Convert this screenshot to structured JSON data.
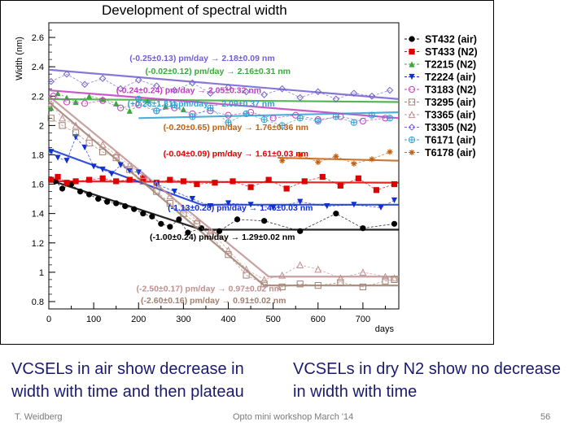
{
  "slide": {
    "caption_left": "VCSELs in air show decrease in width with time and then plateau",
    "caption_right": "VCSELs in dry N2 show no decrease in width with time",
    "footer_author": "T. Weidberg",
    "footer_title": "Opto mini workshop March '14",
    "page_number": "56"
  },
  "chart_data": {
    "type": "scatter",
    "title": "Development of spectral width",
    "xlabel": "days",
    "ylabel": "Width (nm)",
    "xlim": [
      0,
      780
    ],
    "ylim": [
      0.75,
      2.7
    ],
    "xticks": [
      0,
      100,
      200,
      300,
      400,
      500,
      600,
      700
    ],
    "yticks": [
      0.8,
      1.0,
      1.2,
      1.4,
      1.6,
      1.8,
      2.0,
      2.2,
      2.4,
      2.6
    ],
    "ytick_labels": [
      "0.8",
      "1",
      "1.2",
      "1.4",
      "1.6",
      "1.8",
      "2",
      "2.2",
      "2.4",
      "2.6"
    ],
    "legend_position": "right",
    "series": [
      {
        "name": "ST432 (air)",
        "color": "#000000",
        "marker": "circle-filled",
        "linestyle": "dashed",
        "x": [
          5,
          15,
          30,
          50,
          70,
          90,
          110,
          130,
          150,
          170,
          190,
          210,
          230,
          250,
          270,
          290,
          310,
          340,
          380,
          420,
          480,
          560,
          640,
          700,
          770
        ],
        "y": [
          1.63,
          1.62,
          1.57,
          1.6,
          1.55,
          1.53,
          1.5,
          1.48,
          1.47,
          1.45,
          1.43,
          1.4,
          1.38,
          1.33,
          1.31,
          1.36,
          1.27,
          1.3,
          1.28,
          1.36,
          1.35,
          1.28,
          1.4,
          1.3,
          1.33
        ]
      },
      {
        "name": "ST433 (N2)",
        "color": "#e00000",
        "marker": "square-filled",
        "linestyle": "dashed",
        "x": [
          5,
          20,
          40,
          60,
          90,
          120,
          150,
          180,
          210,
          240,
          270,
          300,
          330,
          370,
          410,
          450,
          490,
          530,
          570,
          610,
          650,
          690,
          730,
          770
        ],
        "y": [
          1.63,
          1.65,
          1.61,
          1.62,
          1.63,
          1.64,
          1.62,
          1.63,
          1.64,
          1.61,
          1.63,
          1.62,
          1.6,
          1.61,
          1.62,
          1.58,
          1.63,
          1.57,
          1.62,
          1.65,
          1.59,
          1.64,
          1.56,
          1.6
        ]
      },
      {
        "name": "T2215 (N2)",
        "color": "#3aa83a",
        "marker": "triangle-up-filled",
        "linestyle": "dashed",
        "x": [
          5,
          20,
          40,
          60,
          90,
          120,
          150,
          180,
          220,
          260,
          300
        ],
        "y": [
          2.12,
          2.22,
          2.19,
          2.16,
          2.2,
          2.18,
          2.15,
          2.1,
          2.17,
          2.13,
          2.11
        ]
      },
      {
        "name": "T2224 (air)",
        "color": "#1030d0",
        "marker": "triangle-down-filled",
        "linestyle": "dashed",
        "x": [
          5,
          20,
          40,
          60,
          80,
          100,
          120,
          140,
          160,
          180,
          200,
          240,
          280,
          320,
          360,
          400,
          450,
          500,
          560,
          620,
          680,
          740,
          770
        ],
        "y": [
          1.82,
          1.78,
          1.76,
          1.92,
          1.85,
          1.72,
          1.7,
          1.67,
          1.73,
          1.69,
          1.68,
          1.6,
          1.55,
          1.5,
          1.45,
          1.47,
          1.46,
          1.44,
          1.48,
          1.45,
          1.46,
          1.44,
          1.49
        ]
      },
      {
        "name": "T3183 (N2)",
        "color": "#c040c0",
        "marker": "circle-open",
        "linestyle": "dashed",
        "x": [
          10,
          40,
          80,
          120,
          160,
          200,
          240,
          280,
          320,
          360,
          400,
          450,
          500,
          550,
          600,
          650,
          700,
          750
        ],
        "y": [
          2.2,
          2.16,
          2.15,
          2.17,
          2.12,
          2.14,
          2.1,
          2.12,
          2.08,
          2.1,
          2.07,
          2.09,
          2.05,
          2.07,
          2.04,
          2.06,
          2.03,
          2.05
        ]
      },
      {
        "name": "T3295 (air)",
        "color": "#a08070",
        "marker": "square-open",
        "linestyle": "dashed",
        "x": [
          5,
          30,
          60,
          90,
          120,
          150,
          180,
          210,
          240,
          270,
          300,
          330,
          360,
          400,
          440,
          480,
          520,
          560,
          600,
          650,
          700,
          750,
          770
        ],
        "y": [
          2.05,
          2.0,
          1.95,
          1.88,
          1.82,
          1.78,
          1.7,
          1.62,
          1.55,
          1.47,
          1.4,
          1.33,
          1.25,
          1.12,
          0.98,
          0.92,
          0.9,
          0.92,
          0.91,
          0.93,
          0.9,
          0.94,
          0.95
        ]
      },
      {
        "name": "T3365 (air)",
        "color": "#c09090",
        "marker": "triangle-up-open",
        "linestyle": "dashed",
        "x": [
          5,
          30,
          60,
          90,
          120,
          150,
          180,
          210,
          240,
          270,
          300,
          330,
          360,
          400,
          440,
          480,
          520,
          560,
          600,
          650,
          700,
          750,
          770
        ],
        "y": [
          2.15,
          2.05,
          2.0,
          1.92,
          1.87,
          1.8,
          1.73,
          1.66,
          1.6,
          1.52,
          1.43,
          1.35,
          1.28,
          1.15,
          1.02,
          0.95,
          0.98,
          1.05,
          1.02,
          0.96,
          1.0,
          0.97,
          0.96
        ]
      },
      {
        "name": "T3305 (N2)",
        "color": "#7060d0",
        "marker": "diamond-open",
        "linestyle": "dashed",
        "x": [
          5,
          40,
          80,
          120,
          160,
          200,
          240,
          280,
          320,
          360,
          400,
          440,
          480,
          520,
          560,
          600,
          640,
          680,
          720,
          760
        ],
        "y": [
          2.3,
          2.35,
          2.28,
          2.32,
          2.25,
          2.31,
          2.27,
          2.24,
          2.29,
          2.22,
          2.26,
          2.23,
          2.21,
          2.25,
          2.19,
          2.23,
          2.18,
          2.22,
          2.2,
          2.24
        ]
      },
      {
        "name": "T6171 (air)",
        "color": "#30a0d0",
        "marker": "plus-circle",
        "linestyle": "dashed",
        "x": [
          200,
          240,
          280,
          320,
          360,
          400,
          440,
          480,
          520,
          560,
          600,
          640,
          680,
          720,
          760
        ],
        "y": [
          2.18,
          2.1,
          2.14,
          2.06,
          2.12,
          2.02,
          2.08,
          2.04,
          2.0,
          2.05,
          2.03,
          2.06,
          2.02,
          2.07,
          2.05
        ]
      },
      {
        "name": "T6178 (air)",
        "color": "#c06010",
        "marker": "star",
        "linestyle": "dashed",
        "x": [
          520,
          560,
          600,
          640,
          680,
          720,
          760
        ],
        "y": [
          1.76,
          1.8,
          1.75,
          1.79,
          1.74,
          1.77,
          1.82
        ]
      }
    ],
    "fits": [
      {
        "text": "(-0.25±0.13) pm/day → 2.18±0.09 nm",
        "color": "#7060d0",
        "x": [
          0,
          780
        ],
        "y": [
          2.38,
          2.18
        ]
      },
      {
        "text": "(-0.02±0.12) pm/day → 2.16±0.31 nm",
        "color": "#3aa83a",
        "x": [
          0,
          780
        ],
        "y": [
          2.18,
          2.16
        ]
      },
      {
        "text": "(-0.24±0.24) pm/day → 2.05±0.32 nm",
        "color": "#c040c0",
        "x": [
          0,
          780
        ],
        "y": [
          2.24,
          2.05
        ]
      },
      {
        "text": "(+0.28±1.81) pm/day → 2.09±0.37 nm",
        "color": "#30a0d0",
        "x": [
          200,
          780
        ],
        "y": [
          2.05,
          2.09
        ]
      },
      {
        "text": "(-0.20±0.65) pm/day → 1.76±0.36 nm",
        "color": "#c06010",
        "x": [
          510,
          780
        ],
        "y": [
          1.78,
          1.76
        ]
      },
      {
        "text": "(-0.04±0.09) pm/day → 1.61±0.03 nm",
        "color": "#e00000",
        "x": [
          0,
          780
        ],
        "y": [
          1.62,
          1.61
        ]
      },
      {
        "text": "(-1.13±0.28) pm/day → 1.46±0.03 nm",
        "color": "#1030d0",
        "x": [
          0,
          340,
          780
        ],
        "y": [
          1.84,
          1.46,
          1.46
        ]
      },
      {
        "text": "(-1.00±0.24) pm/day → 1.29±0.02 nm",
        "color": "#000000",
        "x": [
          0,
          340,
          780
        ],
        "y": [
          1.63,
          1.29,
          1.29
        ]
      },
      {
        "text": "(-2.50±0.17) pm/day → 0.97±0.02 nm",
        "color": "#c09090",
        "x": [
          0,
          490,
          780
        ],
        "y": [
          2.2,
          0.97,
          0.97
        ]
      },
      {
        "text": "(-2.60±0.16) pm/day → 0.91±0.02 nm",
        "color": "#a08070",
        "x": [
          0,
          480,
          780
        ],
        "y": [
          2.16,
          0.91,
          0.91
        ]
      }
    ]
  }
}
